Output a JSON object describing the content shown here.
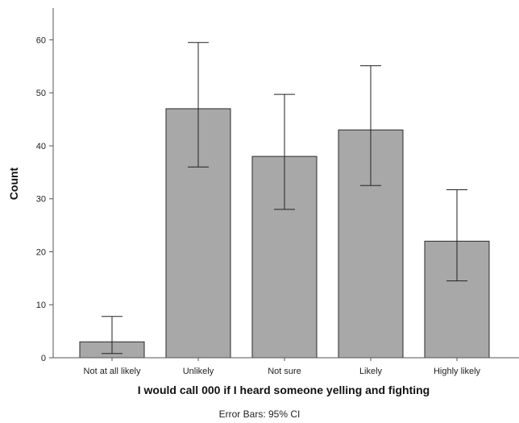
{
  "chart_data": {
    "type": "bar",
    "categories": [
      "Not at all likely",
      "Unlikely",
      "Not sure",
      "Likely",
      "Highly likely"
    ],
    "values": [
      3,
      47,
      38,
      43,
      22
    ],
    "error_bars": {
      "lower": [
        0.8,
        36,
        28,
        32.5,
        14.5
      ],
      "upper": [
        7.8,
        59.5,
        49.7,
        55.1,
        31.7
      ]
    },
    "xlabel": "I would call 000 if I heard someone yelling and fighting",
    "ylabel": "Count",
    "ylim": [
      0,
      66
    ],
    "yticks": [
      0,
      10,
      20,
      30,
      40,
      50,
      60
    ],
    "footnote": "Error Bars: 95% CI",
    "grid": false,
    "colors": {
      "bar": "#a8a8a8",
      "bar_stroke": "#2a2a2a",
      "axis": "#555555",
      "error_bar": "#222222"
    }
  }
}
